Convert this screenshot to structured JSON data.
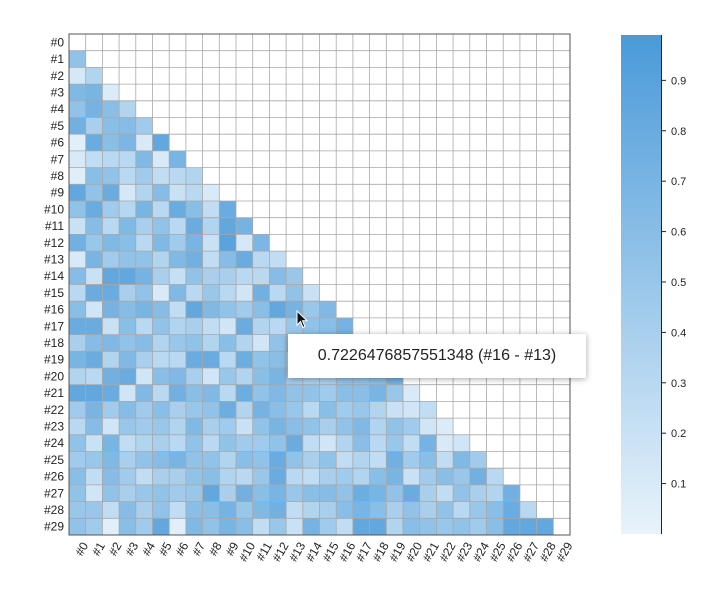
{
  "chart_data": {
    "type": "heatmap",
    "layout": "lower-triangle",
    "labels": [
      "#0",
      "#1",
      "#2",
      "#3",
      "#4",
      "#5",
      "#6",
      "#7",
      "#8",
      "#9",
      "#10",
      "#11",
      "#12",
      "#13",
      "#14",
      "#15",
      "#16",
      "#17",
      "#18",
      "#19",
      "#20",
      "#21",
      "#22",
      "#23",
      "#24",
      "#25",
      "#26",
      "#27",
      "#28",
      "#29"
    ],
    "values": [
      [],
      [
        0.55
      ],
      [
        0.12,
        0.35
      ],
      [
        0.65,
        0.7,
        0.08
      ],
      [
        0.55,
        0.72,
        0.6,
        0.35
      ],
      [
        0.75,
        0.4,
        0.6,
        0.62,
        0.45
      ],
      [
        0.05,
        0.8,
        0.6,
        0.68,
        0.1,
        0.85
      ],
      [
        0.1,
        0.25,
        0.3,
        0.3,
        0.65,
        0.1,
        0.7
      ],
      [
        0.06,
        0.6,
        0.55,
        0.3,
        0.45,
        0.25,
        0.3,
        0.35
      ],
      [
        0.85,
        0.55,
        0.8,
        0.12,
        0.35,
        0.62,
        0.2,
        0.3,
        0.1
      ],
      [
        0.55,
        0.8,
        0.45,
        0.32,
        0.7,
        0.3,
        0.8,
        0.6,
        0.25,
        0.8
      ],
      [
        0.2,
        0.62,
        0.3,
        0.65,
        0.4,
        0.55,
        0.3,
        0.8,
        0.35,
        0.85,
        0.72
      ],
      [
        0.75,
        0.5,
        0.65,
        0.6,
        0.3,
        0.65,
        0.45,
        0.7,
        0.2,
        0.9,
        0.12,
        0.68
      ],
      [
        0.1,
        0.7,
        0.45,
        0.55,
        0.55,
        0.35,
        0.65,
        0.75,
        0.25,
        0.62,
        0.8,
        0.3,
        0.25
      ],
      [
        0.62,
        0.2,
        0.85,
        0.85,
        0.72,
        0.4,
        0.22,
        0.55,
        0.4,
        0.4,
        0.3,
        0.3,
        0.62,
        0.5
      ],
      [
        0.3,
        0.8,
        0.8,
        0.4,
        0.55,
        0.1,
        0.65,
        0.3,
        0.5,
        0.3,
        0.15,
        0.75,
        0.3,
        0.55,
        0.2
      ],
      [
        0.6,
        0.15,
        0.72,
        0.62,
        0.7,
        0.62,
        0.25,
        0.85,
        0.65,
        0.55,
        0.45,
        0.6,
        0.85,
        0.72,
        0.5,
        0.65
      ],
      [
        0.8,
        0.8,
        0.2,
        0.6,
        0.3,
        0.55,
        0.35,
        0.4,
        0.25,
        0.15,
        0.8,
        0.35,
        0.3,
        0.5,
        0.55,
        0.6,
        0.72
      ],
      [
        0.4,
        0.62,
        0.65,
        0.55,
        0.62,
        0.35,
        0.5,
        0.55,
        0.35,
        0.6,
        0.35,
        0.15,
        0.55,
        0.6,
        0.62,
        0.5,
        0.3,
        0.55
      ],
      [
        0.7,
        0.8,
        0.35,
        0.65,
        0.4,
        0.3,
        0.3,
        0.8,
        0.8,
        0.3,
        0.78,
        0.55,
        0.6,
        0.4,
        0.35,
        0.55,
        0.4,
        0.4,
        0.5
      ],
      [
        0.35,
        0.3,
        0.75,
        0.8,
        0.15,
        0.6,
        0.65,
        0.4,
        0.15,
        0.5,
        0.35,
        0.6,
        0.7,
        0.45,
        0.4,
        0.4,
        0.55,
        0.55,
        0.6,
        0.75
      ],
      [
        0.85,
        0.85,
        0.8,
        0.15,
        0.65,
        0.3,
        0.75,
        0.6,
        0.65,
        0.3,
        0.78,
        0.55,
        0.65,
        0.55,
        0.55,
        0.45,
        0.6,
        0.6,
        0.7,
        0.5,
        0.1
      ],
      [
        0.45,
        0.7,
        0.45,
        0.62,
        0.45,
        0.6,
        0.4,
        0.5,
        0.55,
        0.78,
        0.35,
        0.72,
        0.6,
        0.5,
        0.3,
        0.6,
        0.45,
        0.5,
        0.35,
        0.2,
        0.15,
        0.25
      ],
      [
        0.3,
        0.62,
        0.15,
        0.5,
        0.45,
        0.5,
        0.35,
        0.65,
        0.4,
        0.45,
        0.2,
        0.55,
        0.7,
        0.6,
        0.55,
        0.4,
        0.55,
        0.65,
        0.35,
        0.55,
        0.45,
        0.15,
        0.08
      ],
      [
        0.55,
        0.2,
        0.7,
        0.25,
        0.35,
        0.4,
        0.3,
        0.55,
        0.3,
        0.55,
        0.45,
        0.45,
        0.55,
        0.8,
        0.25,
        0.15,
        0.35,
        0.6,
        0.3,
        0.5,
        0.25,
        0.72,
        0.1,
        0.15
      ],
      [
        0.45,
        0.5,
        0.65,
        0.4,
        0.55,
        0.62,
        0.7,
        0.55,
        0.55,
        0.35,
        0.6,
        0.55,
        0.8,
        0.55,
        0.4,
        0.55,
        0.25,
        0.35,
        0.25,
        0.75,
        0.45,
        0.6,
        0.25,
        0.65,
        0.45
      ],
      [
        0.6,
        0.25,
        0.62,
        0.45,
        0.25,
        0.4,
        0.4,
        0.55,
        0.6,
        0.35,
        0.3,
        0.5,
        0.8,
        0.3,
        0.25,
        0.4,
        0.45,
        0.35,
        0.6,
        0.7,
        0.2,
        0.45,
        0.6,
        0.5,
        0.75,
        0.3
      ],
      [
        0.55,
        0.15,
        0.55,
        0.4,
        0.5,
        0.55,
        0.45,
        0.5,
        0.85,
        0.4,
        0.75,
        0.6,
        0.7,
        0.5,
        0.6,
        0.62,
        0.55,
        0.78,
        0.7,
        0.55,
        0.8,
        0.4,
        0.25,
        0.55,
        0.4,
        0.35,
        0.75
      ],
      [
        0.5,
        0.5,
        0.25,
        0.62,
        0.4,
        0.55,
        0.25,
        0.6,
        0.6,
        0.72,
        0.5,
        0.65,
        0.75,
        0.25,
        0.35,
        0.4,
        0.6,
        0.7,
        0.6,
        0.4,
        0.55,
        0.4,
        0.55,
        0.3,
        0.5,
        0.6,
        0.8,
        0.3
      ],
      [
        0.55,
        0.45,
        0.05,
        0.6,
        0.45,
        0.85,
        0.05,
        0.65,
        0.55,
        0.7,
        0.6,
        0.25,
        0.5,
        0.2,
        0.72,
        0.45,
        0.25,
        0.85,
        0.85,
        0.35,
        0.6,
        0.55,
        0.5,
        0.55,
        0.45,
        0.6,
        0.85,
        0.85,
        0.85
      ]
    ],
    "color_min": "#e8f3fb",
    "color_max": "#4a9ad9",
    "colorbar": {
      "ticks": [
        "0.1",
        "0.2",
        "0.3",
        "0.4",
        "0.5",
        "0.6",
        "0.7",
        "0.8",
        "0.9"
      ],
      "range": [
        0.0,
        0.99
      ]
    },
    "tooltip": {
      "text": "0.7226476857551348 (#16 - #13)",
      "row": 16,
      "col": 13
    }
  }
}
